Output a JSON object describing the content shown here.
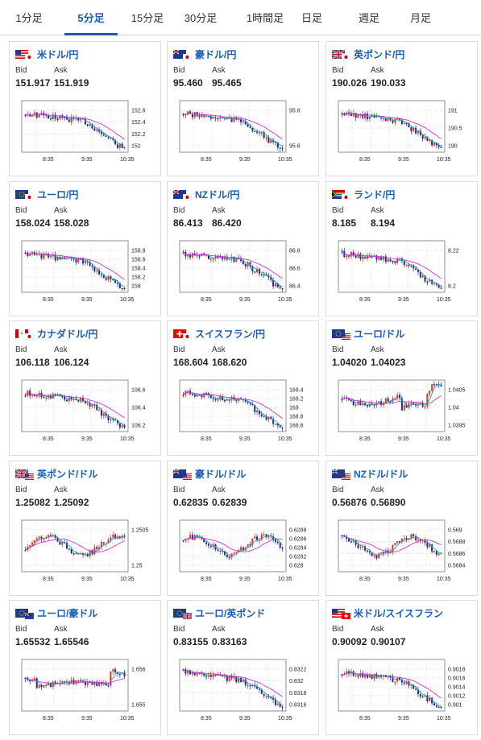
{
  "tabs": [
    "1分足",
    "5分足",
    "15分足",
    "30分足",
    "1時間足",
    "日足",
    "週足",
    "月足"
  ],
  "active_tab": 1,
  "labels": {
    "bid": "Bid",
    "ask": "Ask"
  },
  "colors": {
    "up": "#e8312a",
    "down": "#1a2d8c",
    "ma_fast": "#27a0a0",
    "ma_slow": "#cc33cc",
    "accent": "#1a5db3"
  },
  "x_ticks": [
    "8:35",
    "9:35",
    "10:35"
  ],
  "cards": [
    {
      "name": "米ドル/円",
      "icon": "flag-us-jp-icon",
      "bid": "151.917",
      "ask": "151.919",
      "ticks": [
        "152.6",
        "152.4",
        "152.2",
        "152"
      ],
      "style": "name-purple",
      "shape": "fall"
    },
    {
      "name": "豪ドル/円",
      "icon": "flag-au-jp-icon",
      "bid": "95.460",
      "ask": "95.465",
      "ticks": [
        "95.8",
        "95.6"
      ],
      "shape": "fall"
    },
    {
      "name": "英ポンド/円",
      "icon": "flag-gb-jp-icon",
      "bid": "190.026",
      "ask": "190.033",
      "ticks": [
        "191",
        "190.5",
        "190"
      ],
      "shape": "fall"
    },
    {
      "name": "ユーロ/円",
      "icon": "flag-eu-jp-icon",
      "bid": "158.024",
      "ask": "158.028",
      "ticks": [
        "158.8",
        "158.6",
        "158.4",
        "158.2",
        "158"
      ],
      "shape": "fall"
    },
    {
      "name": "NZドル/円",
      "icon": "flag-nz-jp-icon",
      "bid": "86.413",
      "ask": "86.420",
      "ticks": [
        "86.8",
        "86.6",
        "86.4"
      ],
      "shape": "fall"
    },
    {
      "name": "ランド/円",
      "icon": "flag-za-jp-icon",
      "bid": "8.185",
      "ask": "8.194",
      "ticks": [
        "8.22",
        "8.2"
      ],
      "shape": "fall"
    },
    {
      "name": "カナダドル/円",
      "icon": "flag-ca-jp-icon",
      "bid": "106.118",
      "ask": "106.124",
      "ticks": [
        "106.6",
        "106.4",
        "106.2"
      ],
      "shape": "fall"
    },
    {
      "name": "スイスフラン/円",
      "icon": "flag-ch-jp-icon",
      "bid": "168.604",
      "ask": "168.620",
      "ticks": [
        "169.4",
        "169.2",
        "169",
        "168.8",
        "168.6"
      ],
      "shape": "fall"
    },
    {
      "name": "ユーロ/ドル",
      "icon": "flag-eu-us-icon",
      "bid": "1.04020",
      "ask": "1.04023",
      "ticks": [
        "1.0405",
        "1.04",
        "1.0395"
      ],
      "shape": "vee"
    },
    {
      "name": "英ポンド/ドル",
      "icon": "flag-gb-us-icon",
      "bid": "1.25082",
      "ask": "1.25092",
      "ticks": [
        "1.2505",
        "1.25"
      ],
      "shape": "wave"
    },
    {
      "name": "豪ドル/ドル",
      "icon": "flag-au-us-icon",
      "bid": "0.62835",
      "ask": "0.62839",
      "ticks": [
        "0.6288",
        "0.6286",
        "0.6284",
        "0.6282",
        "0.628"
      ],
      "shape": "wave"
    },
    {
      "name": "NZドル/ドル",
      "icon": "flag-nz-us-icon",
      "bid": "0.56876",
      "ask": "0.56890",
      "ticks": [
        "0.569",
        "0.5688",
        "0.5686",
        "0.5684"
      ],
      "shape": "wave"
    },
    {
      "name": "ユーロ/豪ドル",
      "icon": "flag-eu-au-icon",
      "bid": "1.65532",
      "ask": "1.65546",
      "ticks": [
        "1.656",
        "1.655"
      ],
      "shape": "dip"
    },
    {
      "name": "ユーロ/英ポンド",
      "icon": "flag-eu-gb-icon",
      "bid": "0.83155",
      "ask": "0.83163",
      "ticks": [
        "0.8322",
        "0.832",
        "0.8318",
        "0.8316"
      ],
      "shape": "fall"
    },
    {
      "name": "米ドル/スイスフラン",
      "icon": "flag-us-ch-icon",
      "bid": "0.90092",
      "ask": "0.90107",
      "ticks": [
        "0.9018",
        "0.9016",
        "0.9014",
        "0.9012",
        "0.901"
      ],
      "shape": "fall"
    }
  ]
}
